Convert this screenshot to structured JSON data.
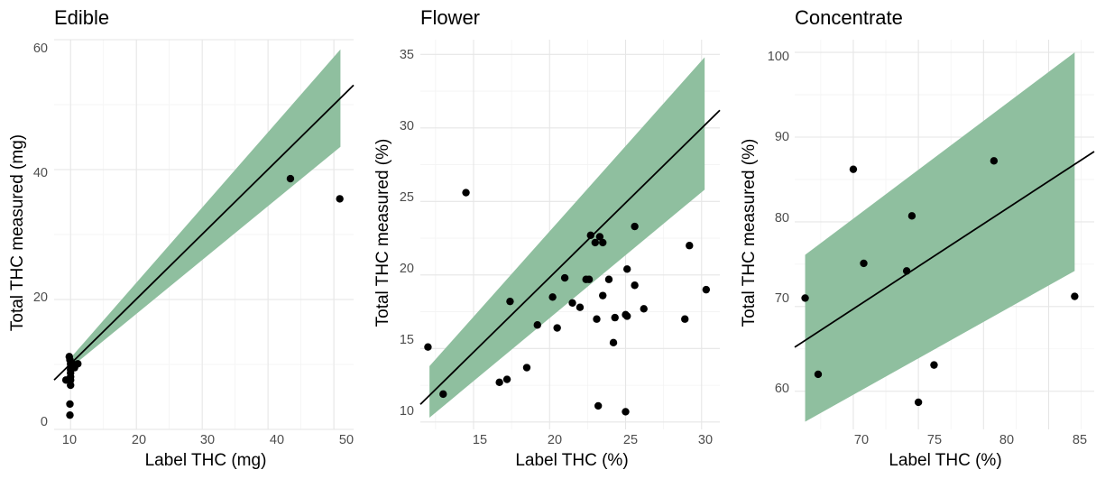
{
  "chart_data": [
    {
      "type": "scatter",
      "title": "Edible",
      "xlabel": "Label THC (mg)",
      "ylabel": "Total THC measured (mg)",
      "xlim": [
        7.5,
        53
      ],
      "ylim": [
        0,
        60
      ],
      "xticks": [
        "10",
        "20",
        "30",
        "40",
        "50"
      ],
      "yticks": [
        "0",
        "20",
        "40",
        "60"
      ],
      "grid": true,
      "band_color": "#8fbf9f",
      "point_color": "#000000",
      "line_color": "#000000",
      "fit_line": {
        "x": [
          7.5,
          53
        ],
        "y": [
          7.6,
          53.0
        ]
      },
      "band": {
        "x": [
          10,
          51
        ],
        "lower": [
          9.5,
          43.5
        ],
        "upper": [
          11.0,
          58.5
        ]
      },
      "points": [
        {
          "x": 9.3,
          "y": 7.6
        },
        {
          "x": 9.8,
          "y": 11.2
        },
        {
          "x": 9.9,
          "y": 10.7
        },
        {
          "x": 10.0,
          "y": 10.1
        },
        {
          "x": 10.0,
          "y": 9.6
        },
        {
          "x": 10.0,
          "y": 9.2
        },
        {
          "x": 10.0,
          "y": 8.7
        },
        {
          "x": 10.0,
          "y": 8.1
        },
        {
          "x": 10.0,
          "y": 7.6
        },
        {
          "x": 10.0,
          "y": 6.8
        },
        {
          "x": 9.9,
          "y": 3.9
        },
        {
          "x": 9.9,
          "y": 2.2
        },
        {
          "x": 10.4,
          "y": 10.0
        },
        {
          "x": 10.6,
          "y": 9.5
        },
        {
          "x": 11.1,
          "y": 10.1
        },
        {
          "x": 43.4,
          "y": 38.6
        },
        {
          "x": 50.9,
          "y": 35.5
        }
      ]
    },
    {
      "type": "scatter",
      "title": "Flower",
      "xlabel": "Label THC (%)",
      "ylabel": "Total THC measured (%)",
      "xlim": [
        11.5,
        31.2
      ],
      "ylim": [
        9.5,
        36
      ],
      "xticks": [
        "15",
        "20",
        "25",
        "30"
      ],
      "yticks": [
        "10",
        "15",
        "20",
        "25",
        "30",
        "35"
      ],
      "grid": true,
      "band_color": "#8fbf9f",
      "point_color": "#000000",
      "line_color": "#000000",
      "fit_line": {
        "x": [
          11.5,
          31.2
        ],
        "y": [
          11.2,
          31.2
        ]
      },
      "band": {
        "x": [
          12.1,
          30.2
        ],
        "lower": [
          10.3,
          25.8
        ],
        "upper": [
          13.8,
          34.8
        ]
      },
      "points": [
        {
          "x": 12.0,
          "y": 15.1
        },
        {
          "x": 13.0,
          "y": 11.9
        },
        {
          "x": 14.5,
          "y": 25.6
        },
        {
          "x": 16.7,
          "y": 12.7
        },
        {
          "x": 17.2,
          "y": 12.9
        },
        {
          "x": 17.4,
          "y": 18.2
        },
        {
          "x": 18.5,
          "y": 13.7
        },
        {
          "x": 19.2,
          "y": 16.6
        },
        {
          "x": 20.2,
          "y": 18.5
        },
        {
          "x": 20.5,
          "y": 16.4
        },
        {
          "x": 21.0,
          "y": 19.8
        },
        {
          "x": 21.5,
          "y": 18.1
        },
        {
          "x": 22.0,
          "y": 17.8
        },
        {
          "x": 22.4,
          "y": 19.7
        },
        {
          "x": 22.6,
          "y": 19.7
        },
        {
          "x": 22.7,
          "y": 22.7
        },
        {
          "x": 23.0,
          "y": 22.2
        },
        {
          "x": 23.1,
          "y": 17.0
        },
        {
          "x": 23.2,
          "y": 11.1
        },
        {
          "x": 23.3,
          "y": 22.6
        },
        {
          "x": 23.5,
          "y": 22.2
        },
        {
          "x": 23.5,
          "y": 18.6
        },
        {
          "x": 23.9,
          "y": 19.7
        },
        {
          "x": 24.2,
          "y": 15.4
        },
        {
          "x": 24.3,
          "y": 17.1
        },
        {
          "x": 25.0,
          "y": 17.3
        },
        {
          "x": 25.1,
          "y": 20.4
        },
        {
          "x": 25.1,
          "y": 17.2
        },
        {
          "x": 25.0,
          "y": 10.7
        },
        {
          "x": 25.6,
          "y": 23.3
        },
        {
          "x": 25.6,
          "y": 19.3
        },
        {
          "x": 26.2,
          "y": 17.7
        },
        {
          "x": 28.9,
          "y": 17.0
        },
        {
          "x": 29.2,
          "y": 22.0
        },
        {
          "x": 30.3,
          "y": 19.0
        }
      ]
    },
    {
      "type": "scatter",
      "title": "Concentrate",
      "xlabel": "Label THC (%)",
      "ylabel": "Total THC measured (%)",
      "xlim": [
        65.5,
        88.5
      ],
      "ylim": [
        55.5,
        101.5
      ],
      "xticks": [
        "70",
        "75",
        "80",
        "85"
      ],
      "yticks": [
        "60",
        "70",
        "80",
        "90",
        "100"
      ],
      "grid": true,
      "band_color": "#8fbf9f",
      "point_color": "#000000",
      "line_color": "#000000",
      "fit_line": {
        "x": [
          65.5,
          88.5
        ],
        "y": [
          65.2,
          88.3
        ]
      },
      "band": {
        "x": [
          66.3,
          87.0
        ],
        "lower": [
          56.4,
          74.2
        ],
        "upper": [
          76.1,
          100.0
        ]
      },
      "points": [
        {
          "x": 66.3,
          "y": 71.0
        },
        {
          "x": 67.3,
          "y": 62.0
        },
        {
          "x": 70.0,
          "y": 86.2
        },
        {
          "x": 70.8,
          "y": 75.1
        },
        {
          "x": 74.1,
          "y": 74.2
        },
        {
          "x": 74.5,
          "y": 80.7
        },
        {
          "x": 75.0,
          "y": 58.7
        },
        {
          "x": 76.2,
          "y": 63.1
        },
        {
          "x": 80.8,
          "y": 87.2
        },
        {
          "x": 87.0,
          "y": 71.2
        }
      ]
    }
  ]
}
